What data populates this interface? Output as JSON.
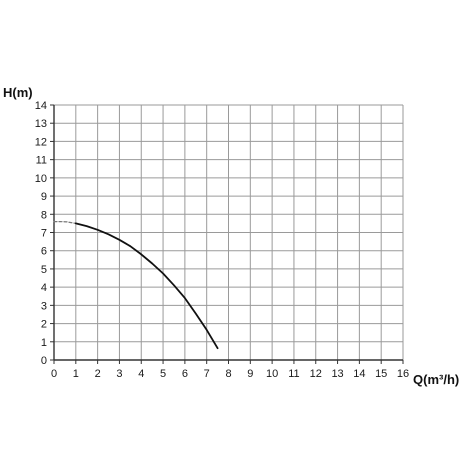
{
  "chart_data": {
    "type": "line",
    "title": "",
    "xlabel": "Q(m³/h)",
    "ylabel": "H(m)",
    "xlim": [
      0,
      16
    ],
    "ylim": [
      0,
      14
    ],
    "x_ticks": [
      "0",
      "1",
      "2",
      "3",
      "4",
      "5",
      "6",
      "7",
      "8",
      "9",
      "10",
      "11",
      "12",
      "13",
      "14",
      "15",
      "16"
    ],
    "y_ticks": [
      "0",
      "1",
      "2",
      "3",
      "4",
      "5",
      "6",
      "7",
      "8",
      "9",
      "10",
      "11",
      "12",
      "13",
      "14"
    ],
    "grid": true,
    "series": [
      {
        "style": "dashed",
        "x": [
          0,
          0.3,
          0.6,
          1.0
        ],
        "y": [
          7.6,
          7.6,
          7.58,
          7.5
        ]
      },
      {
        "style": "solid",
        "x": [
          1.0,
          1.5,
          2.0,
          2.5,
          3.0,
          3.5,
          4.0,
          4.5,
          5.0,
          5.5,
          6.0,
          6.5,
          7.0,
          7.5
        ],
        "y": [
          7.5,
          7.35,
          7.15,
          6.9,
          6.6,
          6.25,
          5.8,
          5.3,
          4.75,
          4.1,
          3.4,
          2.55,
          1.65,
          0.65
        ]
      }
    ],
    "colors": {
      "grid": "#9a9a9a",
      "axis": "#333333",
      "curve": "#111111"
    }
  }
}
